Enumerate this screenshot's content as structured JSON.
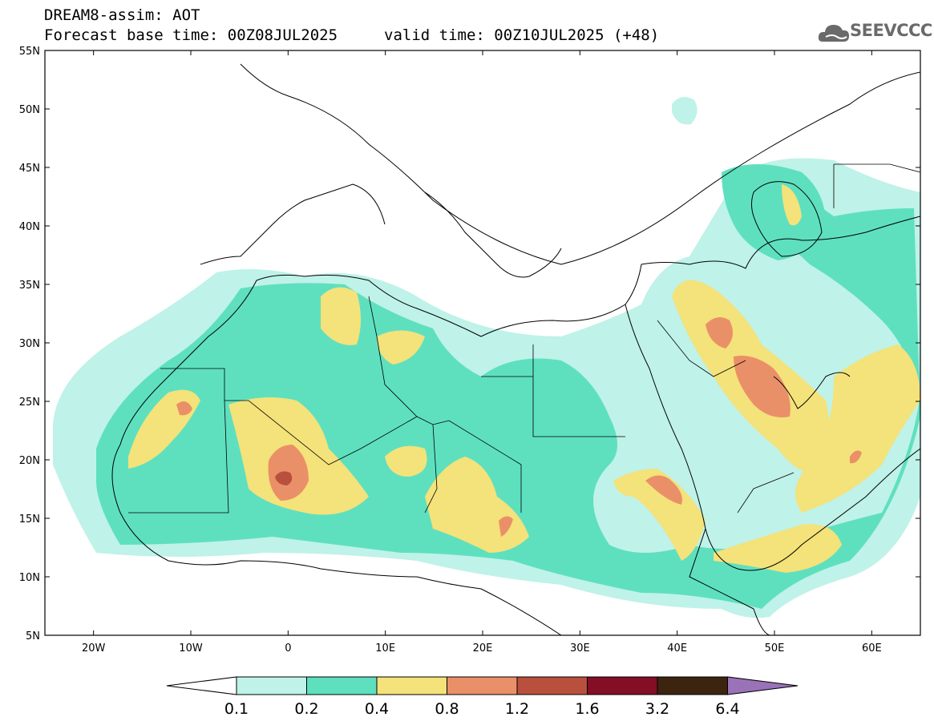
{
  "header": {
    "product": "DREAM8-assim: AOT",
    "base_time": "Forecast base time: 00Z08JUL2025",
    "valid_time": "valid time: 00Z10JUL2025 (+48)",
    "logo_text": "SEEVCCC"
  },
  "map": {
    "lon_range": [
      -25,
      65
    ],
    "lat_range": [
      5,
      55
    ],
    "lat_ticks": [
      "55N",
      "50N",
      "45N",
      "40N",
      "35N",
      "30N",
      "25N",
      "20N",
      "15N",
      "10N",
      "5N"
    ],
    "lon_ticks": [
      "20W",
      "10W",
      "0",
      "10E",
      "20E",
      "30E",
      "40E",
      "50E",
      "60E"
    ],
    "legend_position": "bottom"
  },
  "colorbar": {
    "levels": [
      "0.1",
      "0.2",
      "0.4",
      "0.8",
      "1.2",
      "1.6",
      "3.2",
      "6.4"
    ],
    "colors": [
      "#bff2e8",
      "#5ee0bf",
      "#f4e27a",
      "#ea9068",
      "#b8503d",
      "#830e26",
      "#3d2410",
      "#9a72b8"
    ]
  }
}
